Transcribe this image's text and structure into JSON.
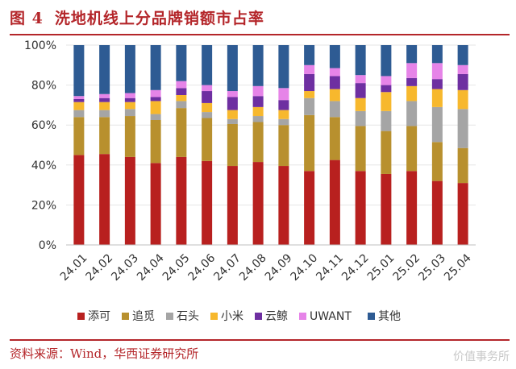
{
  "figure": {
    "number": "图 4",
    "title": "洗地机线上分品牌销额市占率"
  },
  "source": "资料来源：Wind，华西证券研究所",
  "watermark": "价值事务所",
  "chart_data": {
    "type": "bar",
    "stacked": true,
    "categories": [
      "24.01",
      "24.02",
      "24.03",
      "24.04",
      "24.05",
      "24.06",
      "24.07",
      "24.08",
      "24.09",
      "24.10",
      "24.11",
      "24.12",
      "25.01",
      "25.02",
      "25.03",
      "25.04"
    ],
    "ylim": [
      0,
      100
    ],
    "yticks": [
      0,
      20,
      40,
      60,
      80,
      100
    ],
    "ytick_labels": [
      "0%",
      "20%",
      "40%",
      "60%",
      "80%",
      "100%"
    ],
    "legend_position": "bottom",
    "series": [
      {
        "name": "添可",
        "color": "#b8201f",
        "values": [
          45,
          45.5,
          44,
          41,
          44,
          42,
          39.5,
          41.5,
          39.5,
          37,
          42.5,
          37,
          35.5,
          37,
          32,
          31
        ]
      },
      {
        "name": "追觅",
        "color": "#b8902e",
        "values": [
          19,
          18.5,
          20.5,
          21.5,
          24.5,
          21.5,
          21,
          20,
          20.5,
          28,
          21.5,
          22.5,
          21.5,
          22.5,
          19.5,
          17.5
        ]
      },
      {
        "name": "石头",
        "color": "#a5a5a5",
        "values": [
          3.5,
          3.5,
          3.5,
          3,
          3.5,
          3,
          2.5,
          3,
          3,
          8.5,
          8,
          7.5,
          10,
          12.5,
          17.5,
          19.5
        ]
      },
      {
        "name": "小米",
        "color": "#f7b82d",
        "values": [
          4,
          4,
          3.5,
          6.5,
          3,
          4.5,
          4.5,
          4.5,
          4.5,
          3.5,
          6,
          6.5,
          9.5,
          7.5,
          9,
          9.5
        ]
      },
      {
        "name": "云鲸",
        "color": "#6e2fa1",
        "values": [
          1.5,
          2,
          2,
          2,
          3.5,
          6,
          6.5,
          5.5,
          5,
          8.5,
          6.5,
          7.5,
          3.5,
          4,
          5,
          8
        ]
      },
      {
        "name": "UWANT",
        "color": "#e684e8",
        "values": [
          1.5,
          2,
          2.5,
          3.5,
          3.5,
          3,
          3,
          5,
          6,
          4.5,
          4,
          4,
          4.5,
          7.5,
          8,
          4.5
        ]
      },
      {
        "name": "其他",
        "color": "#2e5b93",
        "values": [
          25.5,
          24.5,
          24,
          22.5,
          18,
          20,
          23,
          20.5,
          21.5,
          10,
          11.5,
          15,
          15.5,
          9,
          9,
          10
        ]
      }
    ]
  }
}
